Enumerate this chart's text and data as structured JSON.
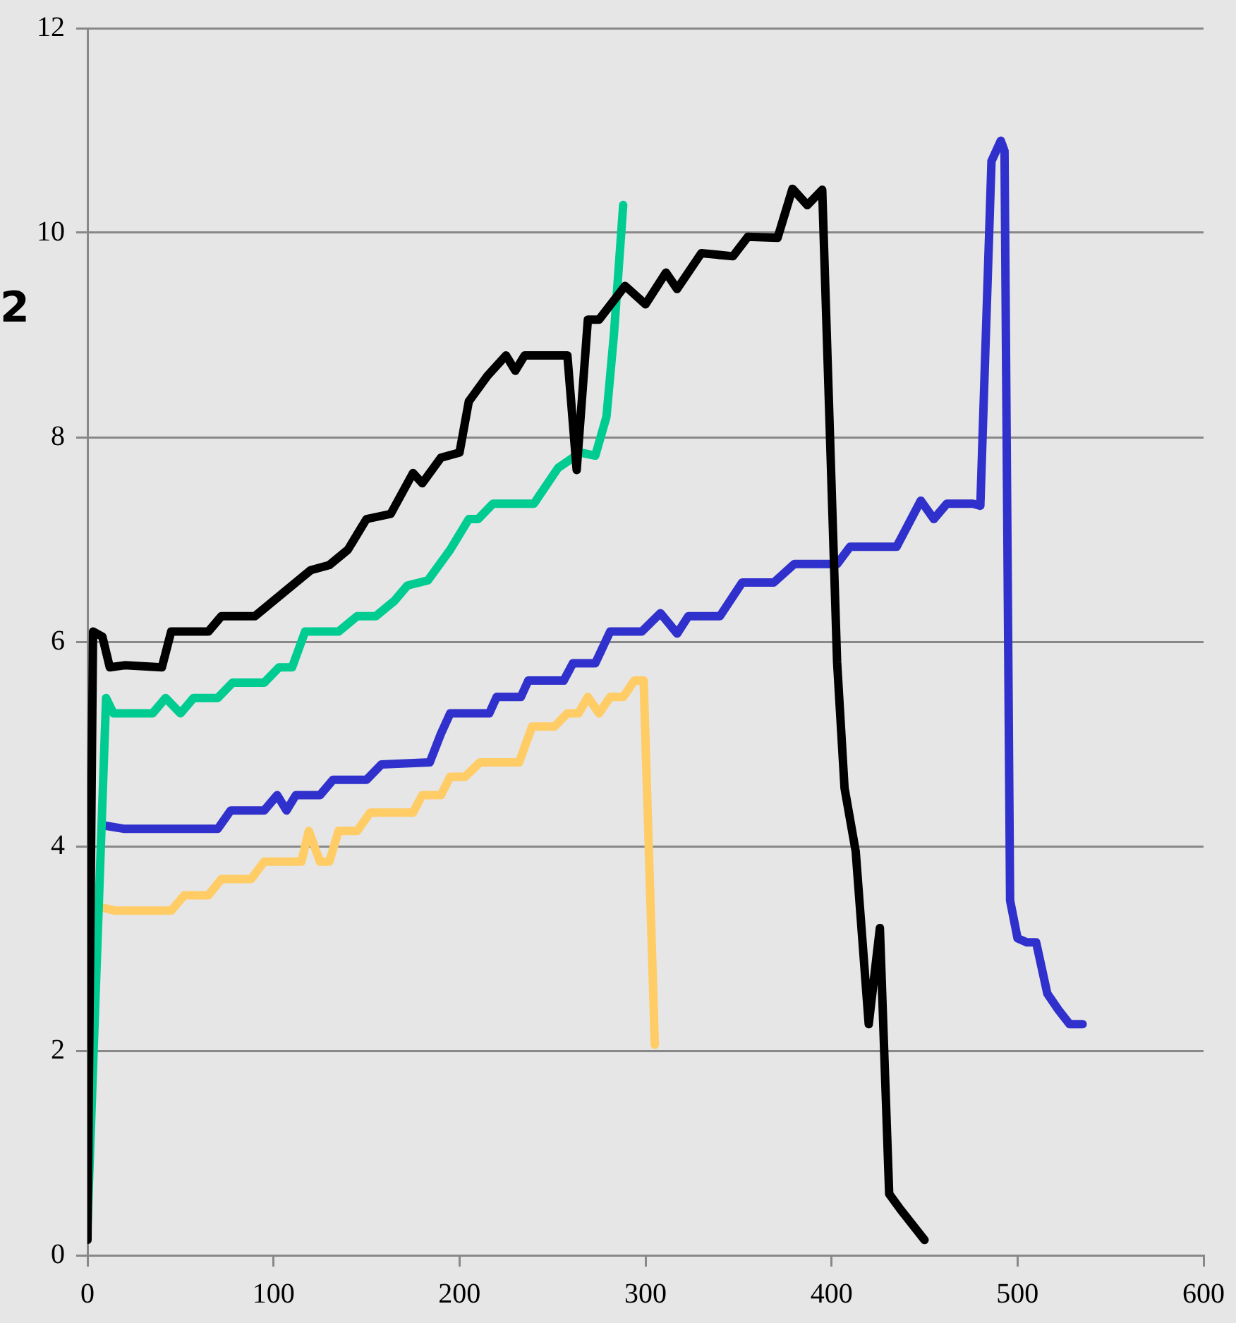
{
  "chart_data": {
    "type": "line",
    "annotations": [
      "2"
    ],
    "xlim": [
      0,
      600
    ],
    "xticks": [
      0,
      100,
      200,
      300,
      400,
      500,
      600
    ],
    "ylim": [
      0,
      12
    ],
    "yticks": [
      0,
      2,
      4,
      6,
      8,
      10,
      12
    ],
    "grid": "y",
    "legend": false,
    "marker": "none",
    "line_style": "solid",
    "series": [
      {
        "color": "#000000",
        "x": [
          0,
          3,
          8,
          12,
          20,
          40,
          45,
          65,
          72,
          90,
          100,
          110,
          120,
          130,
          140,
          150,
          163,
          175,
          180,
          190,
          200,
          205,
          215,
          225,
          230,
          235,
          250,
          258,
          263,
          269,
          275,
          289,
          300,
          311,
          317,
          330,
          347,
          355,
          371,
          379,
          387,
          395,
          403,
          407,
          413,
          420,
          426,
          431,
          437,
          450
        ],
        "values": [
          0.15,
          6.1,
          6.05,
          5.75,
          5.77,
          5.75,
          6.1,
          6.1,
          6.25,
          6.25,
          6.4,
          6.55,
          6.7,
          6.75,
          6.9,
          7.2,
          7.25,
          7.65,
          7.55,
          7.8,
          7.85,
          8.35,
          8.6,
          8.8,
          8.65,
          8.8,
          8.8,
          8.8,
          7.68,
          9.15,
          9.15,
          9.48,
          9.3,
          9.61,
          9.45,
          9.8,
          9.77,
          9.96,
          9.95,
          10.43,
          10.27,
          10.42,
          5.8,
          4.57,
          3.95,
          2.26,
          3.2,
          0.6,
          0.45,
          0.15
        ]
      },
      {
        "color": "#00cc92",
        "x": [
          0,
          10,
          14,
          35,
          42,
          50,
          57,
          70,
          78,
          95,
          103,
          110,
          117,
          135,
          145,
          155,
          165,
          172,
          183,
          195,
          205,
          210,
          218,
          240,
          253,
          265,
          273,
          279,
          283,
          288
        ],
        "values": [
          0.3,
          5.45,
          5.3,
          5.3,
          5.45,
          5.3,
          5.45,
          5.45,
          5.6,
          5.6,
          5.75,
          5.75,
          6.1,
          6.1,
          6.25,
          6.25,
          6.4,
          6.55,
          6.6,
          6.9,
          7.2,
          7.2,
          7.35,
          7.35,
          7.7,
          7.85,
          7.82,
          8.2,
          9.0,
          10.27
        ]
      },
      {
        "color": "#3030cc",
        "x": [
          10,
          20,
          70,
          77,
          95,
          102,
          107,
          112,
          125,
          132,
          150,
          158,
          184,
          190,
          195,
          216,
          220,
          233,
          237,
          256,
          261,
          273,
          281,
          298,
          308,
          317,
          323,
          340,
          352,
          369,
          380,
          403,
          410,
          435,
          448,
          455,
          462,
          476,
          480,
          486,
          491,
          493,
          496,
          500,
          505,
          510,
          516,
          522,
          528,
          535
        ],
        "values": [
          4.2,
          4.17,
          4.17,
          4.35,
          4.35,
          4.5,
          4.35,
          4.5,
          4.5,
          4.65,
          4.65,
          4.8,
          4.82,
          5.1,
          5.3,
          5.3,
          5.46,
          5.46,
          5.62,
          5.62,
          5.79,
          5.79,
          6.1,
          6.1,
          6.28,
          6.08,
          6.25,
          6.25,
          6.58,
          6.58,
          6.76,
          6.76,
          6.93,
          6.93,
          7.38,
          7.2,
          7.35,
          7.35,
          7.33,
          10.7,
          10.9,
          10.8,
          3.47,
          3.1,
          3.06,
          3.06,
          2.56,
          2.4,
          2.26,
          2.26
        ]
      },
      {
        "color": "#ffcc66",
        "x": [
          8,
          15,
          45,
          52,
          65,
          72,
          88,
          95,
          115,
          119,
          125,
          130,
          135,
          145,
          152,
          175,
          180,
          190,
          195,
          203,
          211,
          232,
          239,
          251,
          258,
          264,
          269,
          275,
          281,
          288,
          294,
          299,
          305
        ],
        "values": [
          3.4,
          3.37,
          3.37,
          3.52,
          3.52,
          3.68,
          3.68,
          3.85,
          3.85,
          4.15,
          3.85,
          3.85,
          4.15,
          4.15,
          4.33,
          4.33,
          4.5,
          4.5,
          4.68,
          4.68,
          4.82,
          4.82,
          5.17,
          5.17,
          5.3,
          5.3,
          5.46,
          5.3,
          5.46,
          5.46,
          5.62,
          5.62,
          2.06
        ]
      }
    ]
  }
}
